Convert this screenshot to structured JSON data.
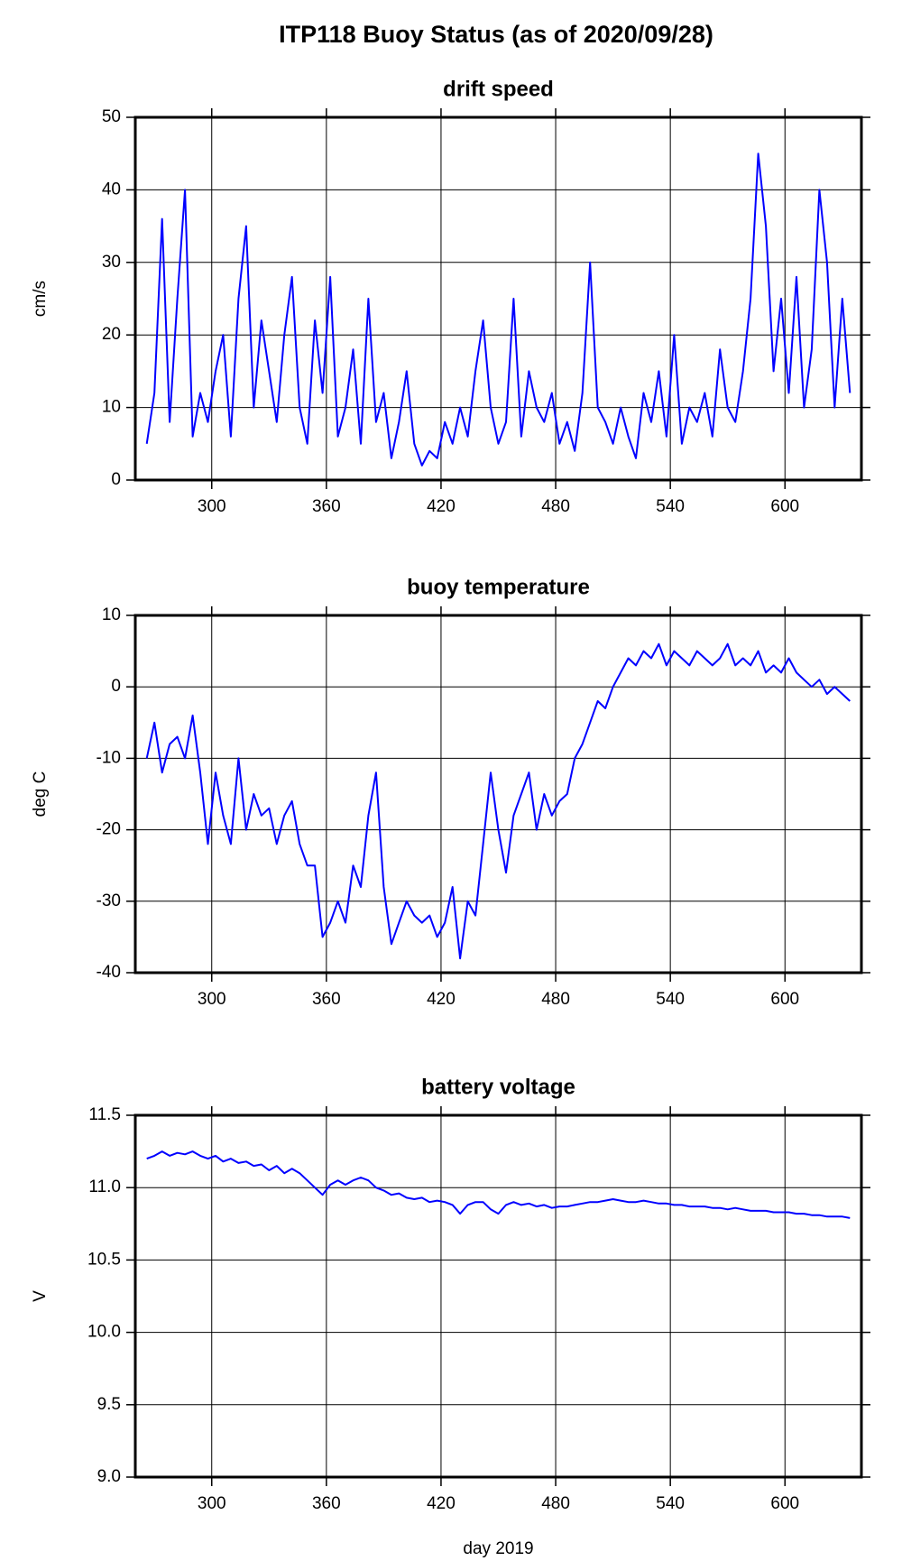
{
  "title": "ITP118 Buoy Status (as of 2020/09/28)",
  "chart_data": [
    {
      "type": "line",
      "title": "drift speed",
      "ylabel": "cm/s",
      "color": "#0000ff",
      "grid": true,
      "xlim": [
        260,
        640
      ],
      "xticks": [
        300,
        360,
        420,
        480,
        540,
        600
      ],
      "ylim": [
        0,
        50
      ],
      "yticks": [
        0,
        10,
        20,
        30,
        40,
        50
      ],
      "x": [
        266,
        270,
        274,
        278,
        282,
        286,
        290,
        294,
        298,
        302,
        306,
        310,
        314,
        318,
        322,
        326,
        330,
        334,
        338,
        342,
        346,
        350,
        354,
        358,
        362,
        366,
        370,
        374,
        378,
        382,
        386,
        390,
        394,
        398,
        402,
        406,
        410,
        414,
        418,
        422,
        426,
        430,
        434,
        438,
        442,
        446,
        450,
        454,
        458,
        462,
        466,
        470,
        474,
        478,
        482,
        486,
        490,
        494,
        498,
        502,
        506,
        510,
        514,
        518,
        522,
        526,
        530,
        534,
        538,
        542,
        546,
        550,
        554,
        558,
        562,
        566,
        570,
        574,
        578,
        582,
        586,
        590,
        594,
        598,
        602,
        606,
        610,
        614,
        618,
        622,
        626,
        630,
        634
      ],
      "values": [
        5,
        12,
        36,
        8,
        25,
        40,
        6,
        12,
        8,
        15,
        20,
        6,
        25,
        35,
        10,
        22,
        15,
        8,
        20,
        28,
        10,
        5,
        22,
        12,
        28,
        6,
        10,
        18,
        5,
        25,
        8,
        12,
        3,
        8,
        15,
        5,
        2,
        4,
        3,
        8,
        5,
        10,
        6,
        15,
        22,
        10,
        5,
        8,
        25,
        6,
        15,
        10,
        8,
        12,
        5,
        8,
        4,
        12,
        30,
        10,
        8,
        5,
        10,
        6,
        3,
        12,
        8,
        15,
        6,
        20,
        5,
        10,
        8,
        12,
        6,
        18,
        10,
        8,
        15,
        25,
        45,
        35,
        15,
        25,
        12,
        28,
        10,
        18,
        40,
        30,
        10,
        25,
        12
      ]
    },
    {
      "type": "line",
      "title": "buoy temperature",
      "ylabel": "deg C",
      "color": "#0000ff",
      "grid": true,
      "xlim": [
        260,
        640
      ],
      "xticks": [
        300,
        360,
        420,
        480,
        540,
        600
      ],
      "ylim": [
        -40,
        10
      ],
      "yticks": [
        -40,
        -30,
        -20,
        -10,
        0,
        10
      ],
      "x": [
        266,
        270,
        274,
        278,
        282,
        286,
        290,
        294,
        298,
        302,
        306,
        310,
        314,
        318,
        322,
        326,
        330,
        334,
        338,
        342,
        346,
        350,
        354,
        358,
        362,
        366,
        370,
        374,
        378,
        382,
        386,
        390,
        394,
        398,
        402,
        406,
        410,
        414,
        418,
        422,
        426,
        430,
        434,
        438,
        442,
        446,
        450,
        454,
        458,
        462,
        466,
        470,
        474,
        478,
        482,
        486,
        490,
        494,
        498,
        502,
        506,
        510,
        514,
        518,
        522,
        526,
        530,
        534,
        538,
        542,
        546,
        550,
        554,
        558,
        562,
        566,
        570,
        574,
        578,
        582,
        586,
        590,
        594,
        598,
        602,
        606,
        610,
        614,
        618,
        622,
        626,
        630,
        634
      ],
      "values": [
        -10,
        -5,
        -12,
        -8,
        -7,
        -10,
        -4,
        -12,
        -22,
        -12,
        -18,
        -22,
        -10,
        -20,
        -15,
        -18,
        -17,
        -22,
        -18,
        -16,
        -22,
        -25,
        -25,
        -35,
        -33,
        -30,
        -33,
        -25,
        -28,
        -18,
        -12,
        -28,
        -36,
        -33,
        -30,
        -32,
        -33,
        -32,
        -35,
        -33,
        -28,
        -38,
        -30,
        -32,
        -22,
        -12,
        -20,
        -26,
        -18,
        -15,
        -12,
        -20,
        -15,
        -18,
        -16,
        -15,
        -10,
        -8,
        -5,
        -2,
        -3,
        0,
        2,
        4,
        3,
        5,
        4,
        6,
        3,
        5,
        4,
        3,
        5,
        4,
        3,
        4,
        6,
        3,
        4,
        3,
        5,
        2,
        3,
        2,
        4,
        2,
        1,
        0,
        1,
        -1,
        0,
        -1,
        -2
      ]
    },
    {
      "type": "line",
      "title": "battery voltage",
      "ylabel": "V",
      "xlabel": "day 2019",
      "color": "#0000ff",
      "grid": true,
      "xlim": [
        260,
        640
      ],
      "xticks": [
        300,
        360,
        420,
        480,
        540,
        600
      ],
      "ylim": [
        9,
        11.5
      ],
      "yticks": [
        {
          "value": 9,
          "label": "9.0"
        },
        9.5,
        {
          "value": 10,
          "label": "10.0"
        },
        10.5,
        {
          "value": 11,
          "label": "11.0"
        },
        11.5
      ],
      "x": [
        266,
        270,
        274,
        278,
        282,
        286,
        290,
        294,
        298,
        302,
        306,
        310,
        314,
        318,
        322,
        326,
        330,
        334,
        338,
        342,
        346,
        350,
        354,
        358,
        362,
        366,
        370,
        374,
        378,
        382,
        386,
        390,
        394,
        398,
        402,
        406,
        410,
        414,
        418,
        422,
        426,
        430,
        434,
        438,
        442,
        446,
        450,
        454,
        458,
        462,
        466,
        470,
        474,
        478,
        482,
        486,
        490,
        494,
        498,
        502,
        506,
        510,
        514,
        518,
        522,
        526,
        530,
        534,
        538,
        542,
        546,
        550,
        554,
        558,
        562,
        566,
        570,
        574,
        578,
        582,
        586,
        590,
        594,
        598,
        602,
        606,
        610,
        614,
        618,
        622,
        626,
        630,
        634
      ],
      "values": [
        11.2,
        11.22,
        11.25,
        11.22,
        11.24,
        11.23,
        11.25,
        11.22,
        11.2,
        11.22,
        11.18,
        11.2,
        11.17,
        11.18,
        11.15,
        11.16,
        11.12,
        11.15,
        11.1,
        11.13,
        11.1,
        11.05,
        11.0,
        10.95,
        11.02,
        11.05,
        11.02,
        11.05,
        11.07,
        11.05,
        11.0,
        10.98,
        10.95,
        10.96,
        10.93,
        10.92,
        10.93,
        10.9,
        10.91,
        10.9,
        10.88,
        10.82,
        10.88,
        10.9,
        10.9,
        10.85,
        10.82,
        10.88,
        10.9,
        10.88,
        10.89,
        10.87,
        10.88,
        10.86,
        10.87,
        10.87,
        10.88,
        10.89,
        10.9,
        10.9,
        10.91,
        10.92,
        10.91,
        10.9,
        10.9,
        10.91,
        10.9,
        10.89,
        10.89,
        10.88,
        10.88,
        10.87,
        10.87,
        10.87,
        10.86,
        10.86,
        10.85,
        10.86,
        10.85,
        10.84,
        10.84,
        10.84,
        10.83,
        10.83,
        10.83,
        10.82,
        10.82,
        10.81,
        10.81,
        10.8,
        10.8,
        10.8,
        10.79
      ]
    }
  ]
}
